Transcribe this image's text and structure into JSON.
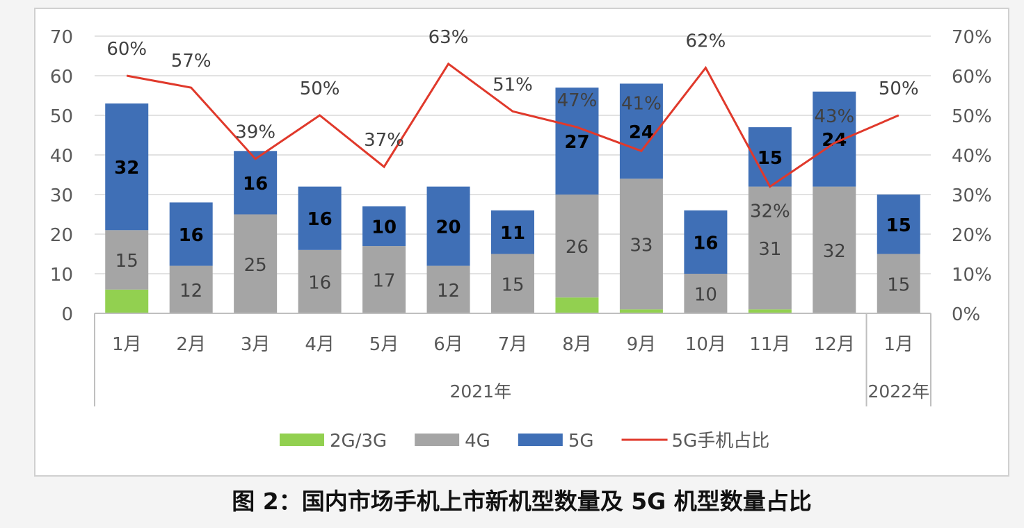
{
  "chart_data": {
    "type": "bar",
    "stacked": true,
    "caption": "图 2：国内市场手机上市新机型数量及 5G 机型数量占比",
    "categories": [
      "1月",
      "2月",
      "3月",
      "4月",
      "5月",
      "6月",
      "7月",
      "8月",
      "9月",
      "10月",
      "11月",
      "12月",
      "1月"
    ],
    "groups": [
      {
        "label": "2021年",
        "span": 12
      },
      {
        "label": "2022年",
        "span": 1
      }
    ],
    "series": [
      {
        "name": "2G/3G",
        "color": "#92d050",
        "values": [
          6,
          0,
          0,
          0,
          0,
          0,
          0,
          4,
          1,
          0,
          1,
          0,
          0
        ],
        "labels": false
      },
      {
        "name": "4G",
        "color": "#a5a5a5",
        "values": [
          15,
          12,
          25,
          16,
          17,
          12,
          15,
          26,
          33,
          10,
          31,
          32,
          15
        ],
        "labels": true
      },
      {
        "name": "5G",
        "color": "#3f6fb6",
        "values": [
          32,
          16,
          16,
          16,
          10,
          20,
          11,
          27,
          24,
          16,
          15,
          24,
          15
        ],
        "labels": true
      }
    ],
    "line": {
      "name": "5G手机占比",
      "color": "#e0392b",
      "axis": "right",
      "values": [
        60,
        57,
        39,
        50,
        37,
        63,
        51,
        47,
        41,
        62,
        32,
        43,
        50
      ],
      "labels": [
        "60%",
        "57%",
        "39%",
        "50%",
        "37%",
        "63%",
        "51%",
        "47%",
        "41%",
        "62%",
        "32%",
        "43%",
        "50%"
      ]
    },
    "yleft": {
      "ylim": [
        0,
        70
      ],
      "ticks": [
        "0",
        "10",
        "20",
        "30",
        "40",
        "50",
        "60",
        "70"
      ]
    },
    "yright": {
      "ylim": [
        0,
        70
      ],
      "ticks": [
        "0%",
        "10%",
        "20%",
        "30%",
        "40%",
        "50%",
        "60%",
        "70%"
      ]
    },
    "grid": true,
    "legend": "bottom"
  }
}
